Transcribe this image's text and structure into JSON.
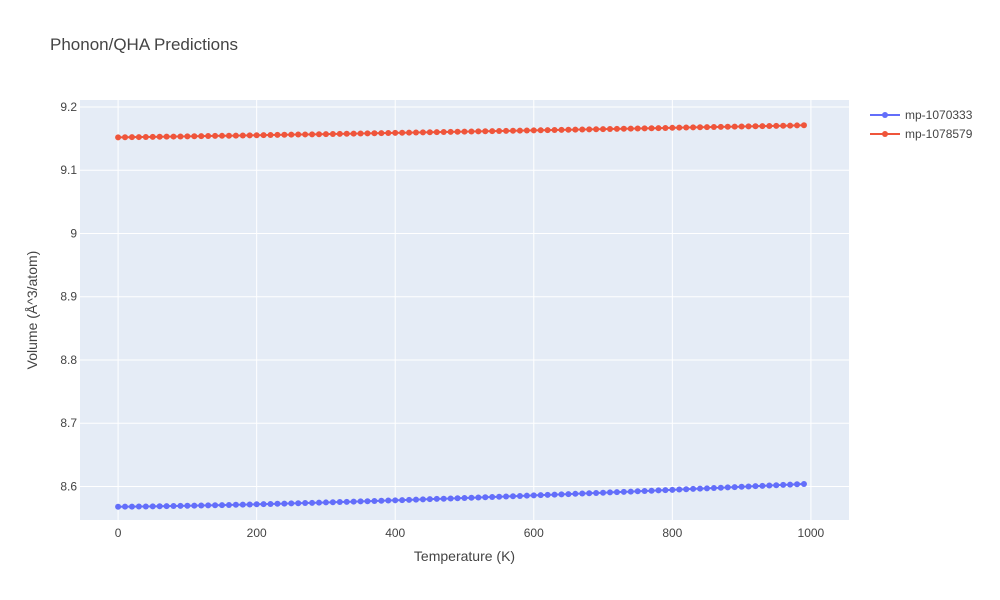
{
  "chart_data": {
    "type": "line",
    "title": "Phonon/QHA Predictions",
    "xlabel": "Temperature (K)",
    "ylabel": "Volume (Å^3/atom)",
    "xlim": [
      -55,
      1055
    ],
    "ylim": [
      8.547,
      9.211
    ],
    "xticks": [
      0,
      200,
      400,
      600,
      800,
      1000
    ],
    "xtick_labels": [
      "0",
      "200",
      "400",
      "600",
      "800",
      "1000"
    ],
    "yticks": [
      8.6,
      8.7,
      8.8,
      8.9,
      9.0,
      9.1,
      9.2
    ],
    "ytick_labels": [
      "8.6",
      "8.7",
      "8.8",
      "8.9",
      "9",
      "9.1",
      "9.2"
    ],
    "grid": true,
    "legend_position": "top-right",
    "x": [
      0,
      10,
      20,
      30,
      40,
      50,
      60,
      70,
      80,
      90,
      100,
      110,
      120,
      130,
      140,
      150,
      160,
      170,
      180,
      190,
      200,
      210,
      220,
      230,
      240,
      250,
      260,
      270,
      280,
      290,
      300,
      310,
      320,
      330,
      340,
      350,
      360,
      370,
      380,
      390,
      400,
      410,
      420,
      430,
      440,
      450,
      460,
      470,
      480,
      490,
      500,
      510,
      520,
      530,
      540,
      550,
      560,
      570,
      580,
      590,
      600,
      610,
      620,
      630,
      640,
      650,
      660,
      670,
      680,
      690,
      700,
      710,
      720,
      730,
      740,
      750,
      760,
      770,
      780,
      790,
      800,
      810,
      820,
      830,
      840,
      850,
      860,
      870,
      880,
      890,
      900,
      910,
      920,
      930,
      940,
      950,
      960,
      970,
      980,
      990
    ],
    "series": [
      {
        "name": "mp-1070333",
        "color": "#636efa",
        "start": 8.568,
        "end": 8.604,
        "curve": 1.4
      },
      {
        "name": "mp-1078579",
        "color": "#ef553b",
        "start": 9.152,
        "end": 9.171,
        "curve": 1.1
      }
    ]
  }
}
